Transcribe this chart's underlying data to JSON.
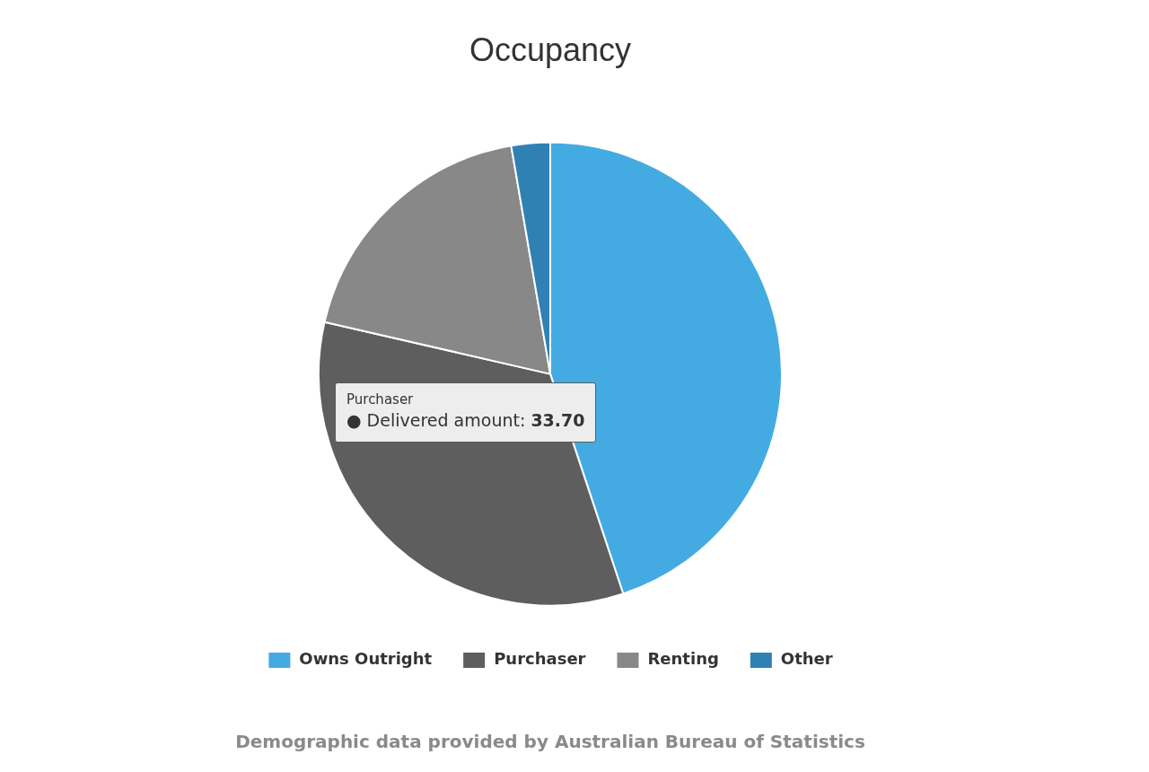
{
  "chart_data": {
    "type": "pie",
    "title": "Occupancy",
    "categories": [
      "Owns Outright",
      "Purchaser",
      "Renting",
      "Other"
    ],
    "values": [
      44.9,
      33.7,
      18.7,
      2.7
    ],
    "colors": [
      "#44abe2",
      "#5e5e5e",
      "#888888",
      "#3081b3"
    ],
    "legend": "bottom",
    "annotations": [
      "Purchaser\n● Delivered amount: 33.70",
      "Demographic data provided by Australian Bureau of Statistics"
    ]
  }
}
